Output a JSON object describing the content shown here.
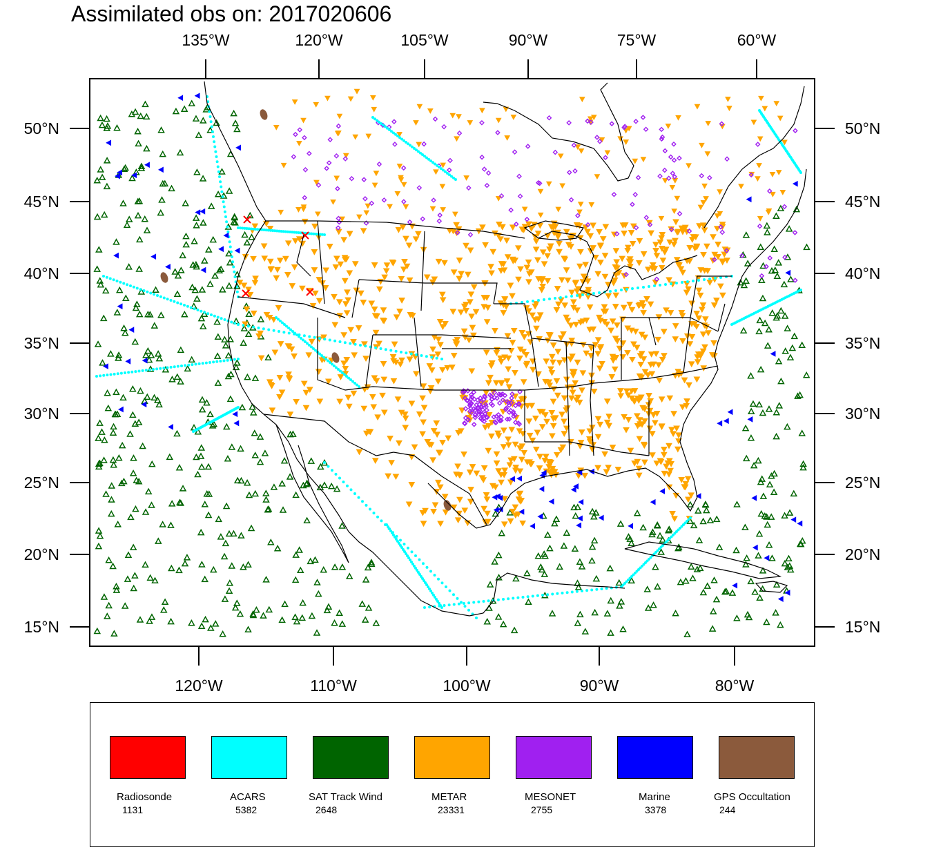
{
  "title": "Assimilated obs on: 2017020606",
  "axes": {
    "top_lon_labels": [
      "135°W",
      "120°W",
      "105°W",
      "90°W",
      "75°W",
      "60°W"
    ],
    "bottom_lon_labels": [
      "120°W",
      "110°W",
      "100°W",
      "90°W",
      "80°W"
    ],
    "lat_labels": [
      "50°N",
      "45°N",
      "40°N",
      "35°N",
      "30°N",
      "25°N",
      "20°N",
      "15°N"
    ],
    "lat_values": [
      50,
      45,
      40,
      35,
      30,
      25,
      20,
      15
    ],
    "bottom_lon_values": [
      -120,
      -110,
      -100,
      -90,
      -80
    ]
  },
  "legend": [
    {
      "name": "Radiosonde",
      "count": "1131",
      "color": "#ff0000",
      "symbol": "x-mark"
    },
    {
      "name": "ACARS",
      "count": "5382",
      "color": "#00ffff",
      "symbol": "dot"
    },
    {
      "name": "SAT Track Wind",
      "count": "2648",
      "color": "#006400",
      "symbol": "triangle-up"
    },
    {
      "name": "METAR",
      "count": "23331",
      "color": "#ffa500",
      "symbol": "triangle-down"
    },
    {
      "name": "MESONET",
      "count": "2755",
      "color": "#a020f0",
      "symbol": "diamond"
    },
    {
      "name": "Marine",
      "count": "3378",
      "color": "#0000ff",
      "symbol": "triangle-left"
    },
    {
      "name": "GPS Occultation",
      "count": "244",
      "color": "#8b5a3c",
      "symbol": "blob"
    }
  ]
}
